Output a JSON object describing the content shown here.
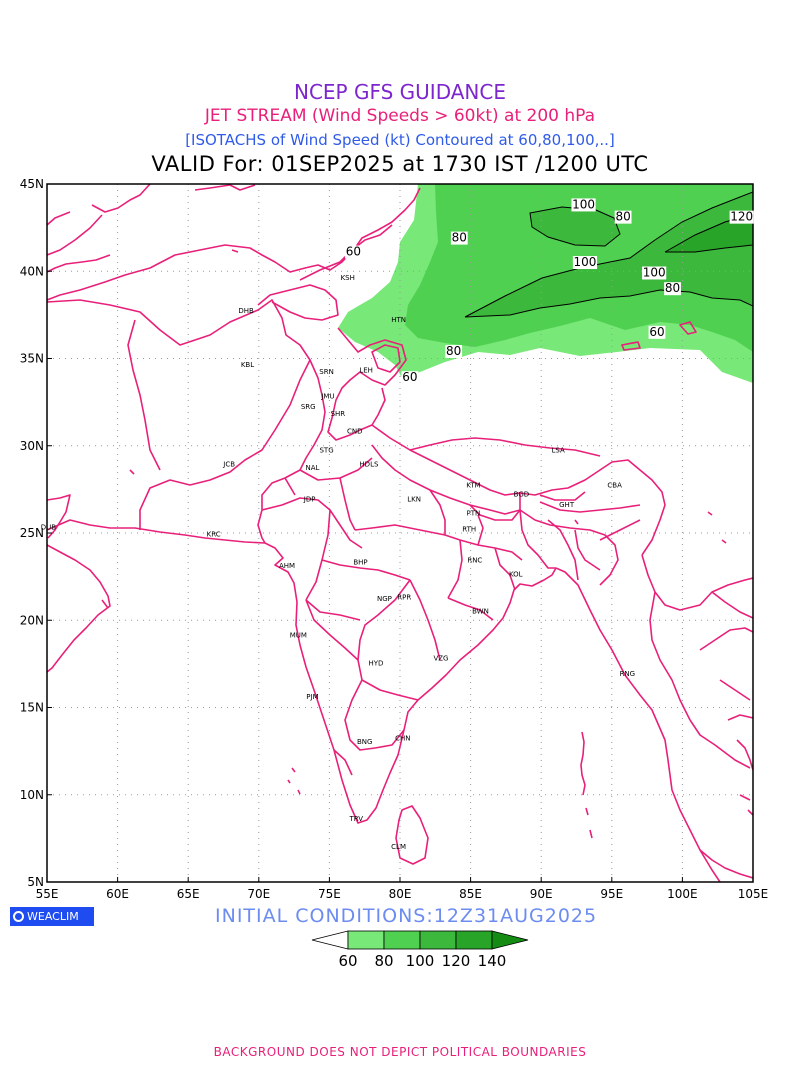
{
  "titles": {
    "line1": "NCEP GFS GUIDANCE",
    "line2": "JET STREAM (Wind Speeds > 60kt) at 200 hPa",
    "line3": "[ISOTACHS of Wind Speed (kt) Contoured at 60,80,100,..]",
    "line4": "VALID For: 01SEP2025 at 1730 IST /1200 UTC"
  },
  "colors": {
    "line1": "#7d26cd",
    "line2": "#e8207a",
    "line3": "#2f5be8",
    "line4": "#000000",
    "boundaries": "#e8207a",
    "logo_bg": "#1f4cf0",
    "init": "#6c8cf0",
    "footer": "#e8207a",
    "fill_60": "#78e878",
    "fill_80": "#50d050",
    "fill_100": "#3cb83c",
    "fill_120": "#28a428",
    "fill_140": "#148c14"
  },
  "axes": {
    "lon_ticks": [
      "55E",
      "60E",
      "65E",
      "70E",
      "75E",
      "80E",
      "85E",
      "90E",
      "95E",
      "100E",
      "105E"
    ],
    "lat_ticks": [
      "5N",
      "10N",
      "15N",
      "20N",
      "25N",
      "30N",
      "35N",
      "40N",
      "45N"
    ]
  },
  "cities": [
    {
      "name": "DHB",
      "lon": 69.1,
      "lat": 37.6
    },
    {
      "name": "KSH",
      "lon": 76.3,
      "lat": 39.5
    },
    {
      "name": "HTN",
      "lon": 79.9,
      "lat": 37.1
    },
    {
      "name": "KBL",
      "lon": 69.2,
      "lat": 34.5
    },
    {
      "name": "SRN",
      "lon": 74.8,
      "lat": 34.1
    },
    {
      "name": "LEH",
      "lon": 77.6,
      "lat": 34.2
    },
    {
      "name": "JMU",
      "lon": 74.9,
      "lat": 32.7
    },
    {
      "name": "SRG",
      "lon": 73.5,
      "lat": 32.1
    },
    {
      "name": "SHR",
      "lon": 75.6,
      "lat": 31.7
    },
    {
      "name": "CND",
      "lon": 76.8,
      "lat": 30.7
    },
    {
      "name": "STG",
      "lon": 74.8,
      "lat": 29.6
    },
    {
      "name": "NAL",
      "lon": 73.8,
      "lat": 28.6
    },
    {
      "name": "JCB",
      "lon": 67.9,
      "lat": 28.8
    },
    {
      "name": "HDLS",
      "lon": 77.8,
      "lat": 28.8
    },
    {
      "name": "JDP",
      "lon": 73.6,
      "lat": 26.8
    },
    {
      "name": "LKN",
      "lon": 81.0,
      "lat": 26.8
    },
    {
      "name": "KTM",
      "lon": 85.2,
      "lat": 27.6
    },
    {
      "name": "LSA",
      "lon": 91.2,
      "lat": 29.6
    },
    {
      "name": "BGD",
      "lon": 88.6,
      "lat": 27.1
    },
    {
      "name": "CBA",
      "lon": 95.2,
      "lat": 27.6
    },
    {
      "name": "GHT",
      "lon": 91.8,
      "lat": 26.5
    },
    {
      "name": "PTN",
      "lon": 85.2,
      "lat": 26.0
    },
    {
      "name": "RTH",
      "lon": 84.9,
      "lat": 25.1
    },
    {
      "name": "KRC",
      "lon": 66.8,
      "lat": 24.8
    },
    {
      "name": "DUB",
      "lon": 55.1,
      "lat": 25.2
    },
    {
      "name": "AHM",
      "lon": 72.0,
      "lat": 23.0
    },
    {
      "name": "BHP",
      "lon": 77.2,
      "lat": 23.2
    },
    {
      "name": "RNC",
      "lon": 85.3,
      "lat": 23.3
    },
    {
      "name": "KOL",
      "lon": 88.2,
      "lat": 22.5
    },
    {
      "name": "NGP",
      "lon": 78.9,
      "lat": 21.1
    },
    {
      "name": "RPR",
      "lon": 80.3,
      "lat": 21.2
    },
    {
      "name": "BWN",
      "lon": 85.7,
      "lat": 20.4
    },
    {
      "name": "MUM",
      "lon": 72.8,
      "lat": 19.0
    },
    {
      "name": "HYD",
      "lon": 78.3,
      "lat": 17.4
    },
    {
      "name": "VZG",
      "lon": 82.9,
      "lat": 17.7
    },
    {
      "name": "RNG",
      "lon": 96.1,
      "lat": 16.8
    },
    {
      "name": "PJM",
      "lon": 73.8,
      "lat": 15.5
    },
    {
      "name": "BNG",
      "lon": 77.5,
      "lat": 12.9
    },
    {
      "name": "CHN",
      "lon": 80.2,
      "lat": 13.1
    },
    {
      "name": "TRV",
      "lon": 76.9,
      "lat": 8.5
    },
    {
      "name": "CLM",
      "lon": 79.9,
      "lat": 6.9
    }
  ],
  "contour_labels": [
    {
      "text": "60",
      "lon": 76.7,
      "lat": 40.9
    },
    {
      "text": "80",
      "lon": 84.2,
      "lat": 41.7
    },
    {
      "text": "100",
      "lon": 93.0,
      "lat": 43.6
    },
    {
      "text": "80",
      "lon": 95.8,
      "lat": 42.9
    },
    {
      "text": "120",
      "lon": 104.2,
      "lat": 42.9
    },
    {
      "text": "100",
      "lon": 93.1,
      "lat": 40.3
    },
    {
      "text": "100",
      "lon": 98.0,
      "lat": 39.7
    },
    {
      "text": "80",
      "lon": 99.3,
      "lat": 38.8
    },
    {
      "text": "60",
      "lon": 98.2,
      "lat": 36.3
    },
    {
      "text": "80",
      "lon": 83.8,
      "lat": 35.2
    },
    {
      "text": "60",
      "lon": 80.7,
      "lat": 33.7
    }
  ],
  "legend": {
    "labels": [
      "60",
      "80",
      "100",
      "120",
      "140"
    ]
  },
  "logo": "WEACLIM",
  "initial_conditions": "INITIAL CONDITIONS:12Z31AUG2025",
  "footer": "BACKGROUND DOES NOT DEPICT POLITICAL BOUNDARIES"
}
